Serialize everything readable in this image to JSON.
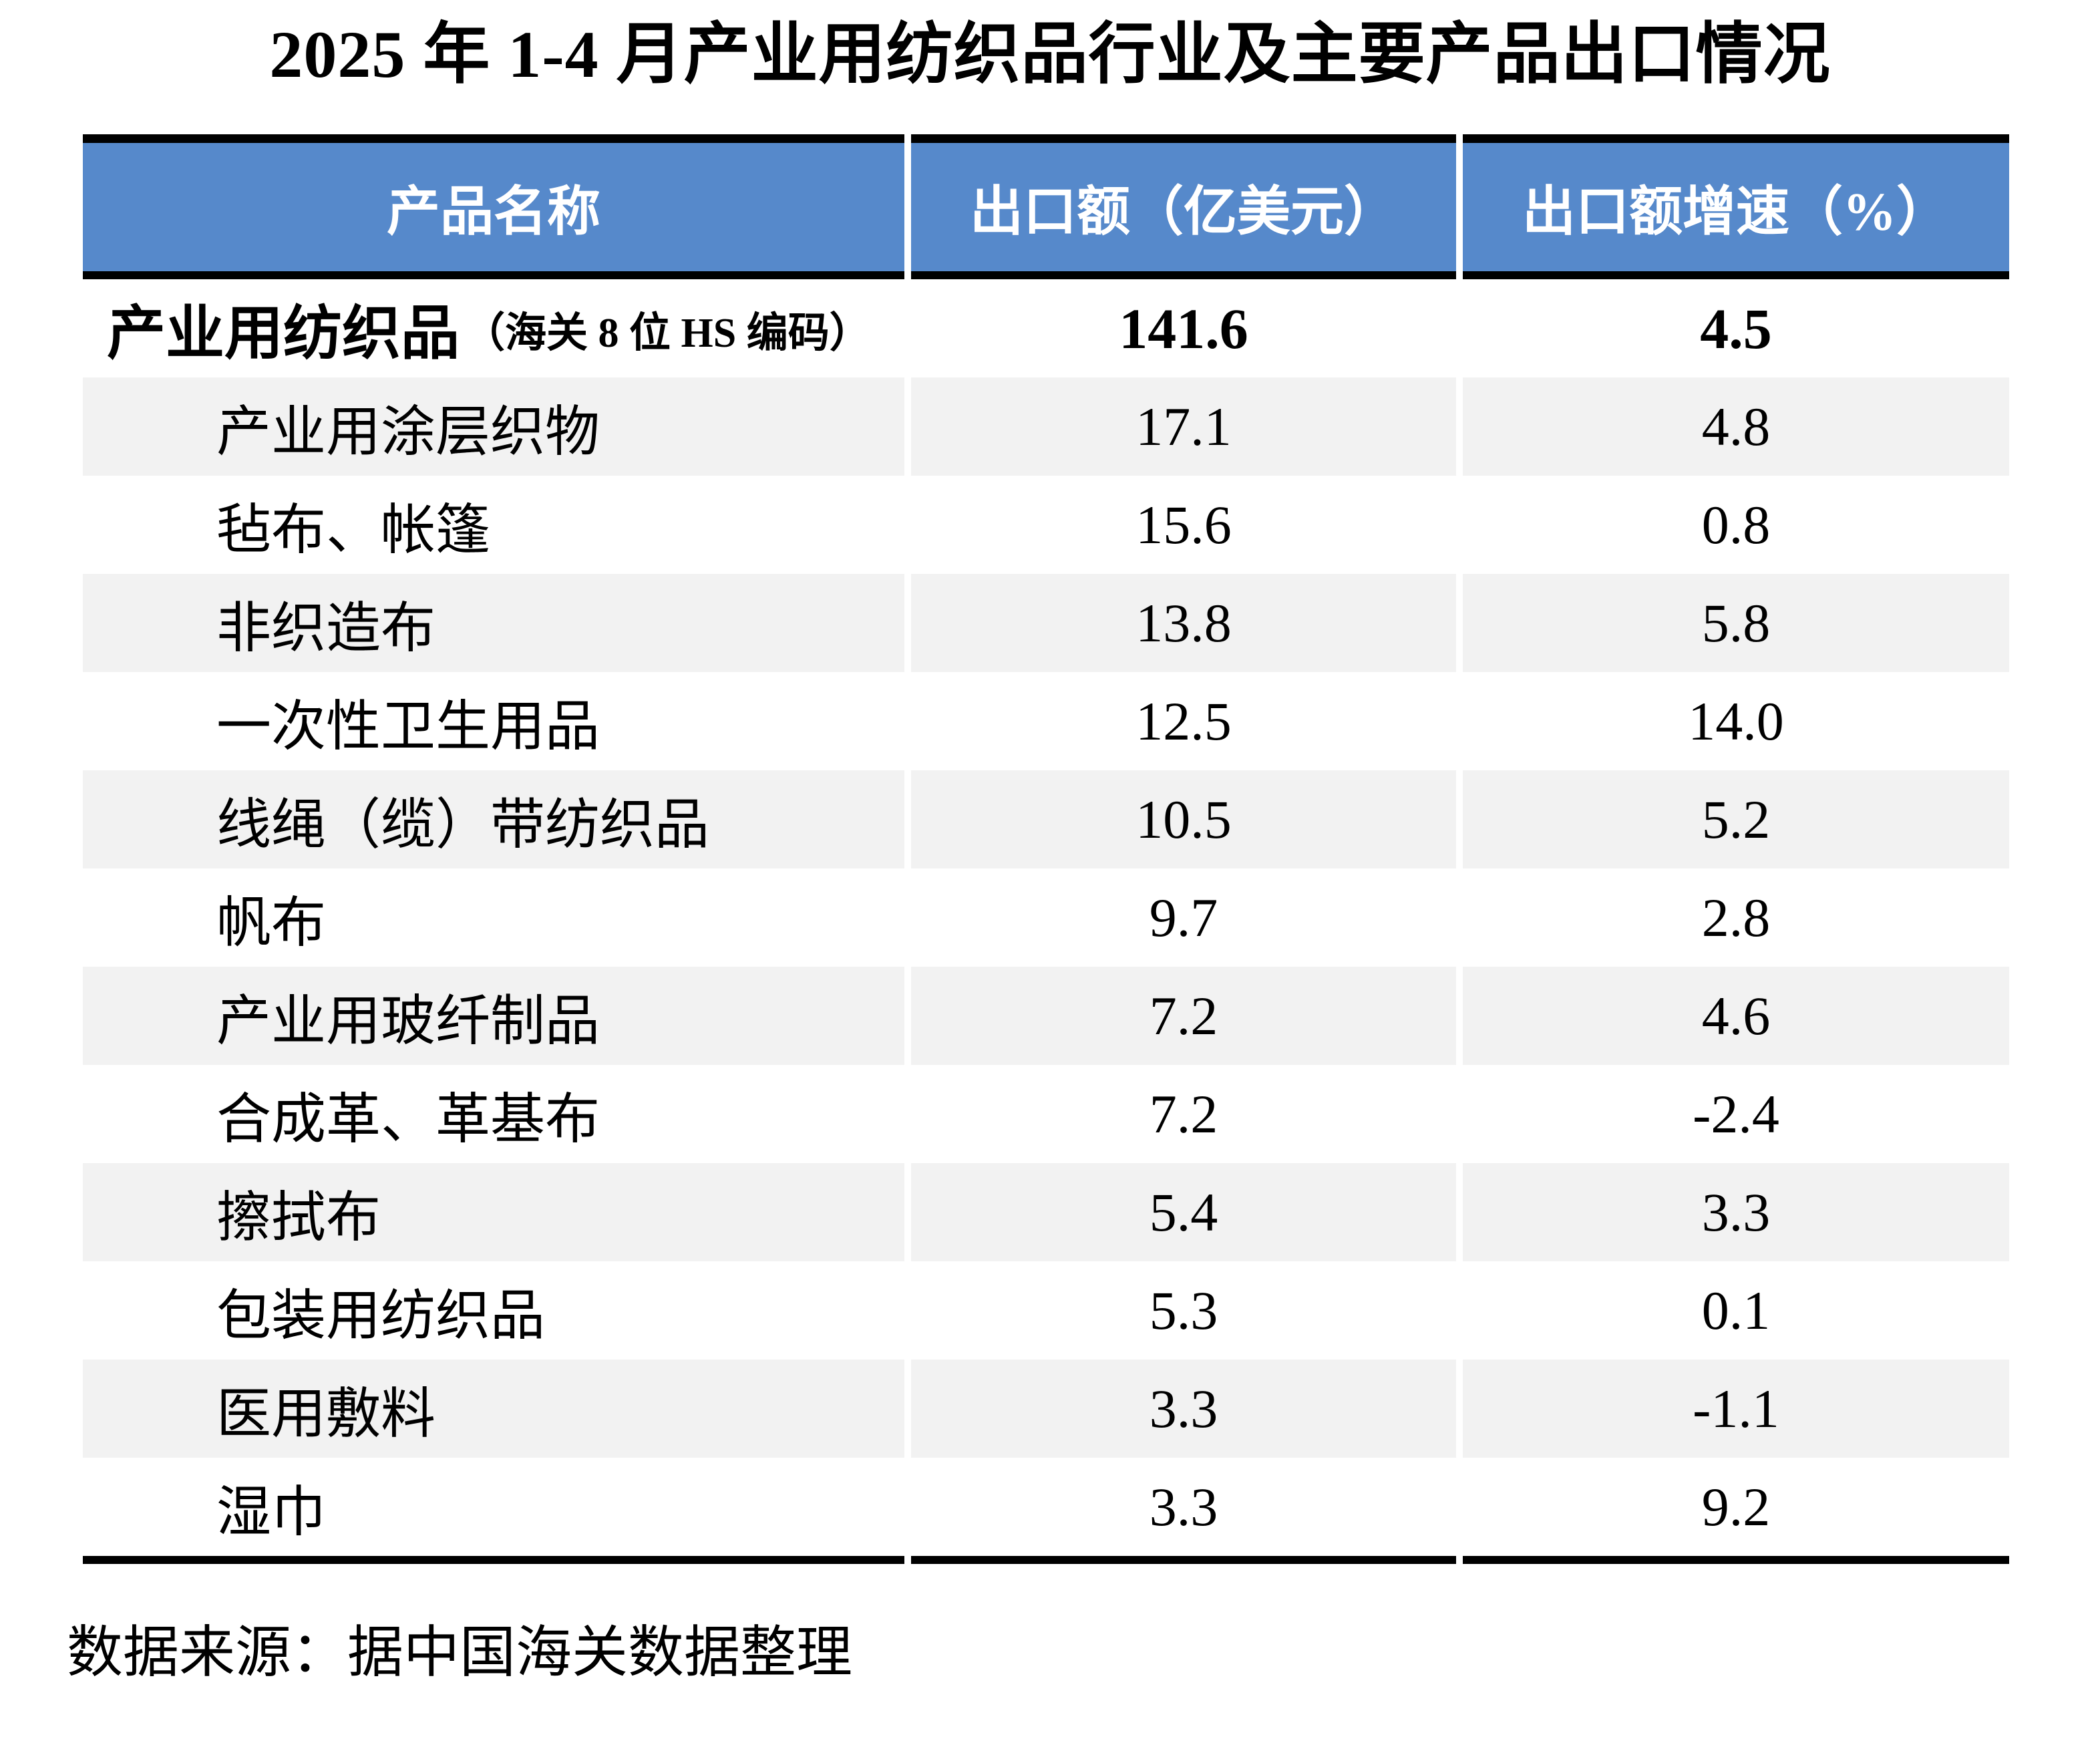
{
  "title": "2025 年 1-4 月产业用纺织品行业及主要产品出口情况",
  "source_note": "数据来源：据中国海关数据整理",
  "colors": {
    "header_bg": "#5689CB",
    "header_text": "#FFFFFF",
    "stripe_bg": "#F2F2F2",
    "rule": "#000000",
    "body_text": "#000000"
  },
  "table": {
    "columns": [
      "产品名称",
      "出口额（亿美元）",
      "出口额增速（%）"
    ],
    "rows": [
      {
        "label": "产业用纺织品",
        "label_suffix": "（海关 8 位 HS 编码）",
        "value": "141.6",
        "growth": "4.5",
        "emphasis": true
      },
      {
        "label": "产业用涂层织物",
        "value": "17.1",
        "growth": "4.8"
      },
      {
        "label": "毡布、帐篷",
        "value": "15.6",
        "growth": "0.8"
      },
      {
        "label": "非织造布",
        "value": "13.8",
        "growth": "5.8"
      },
      {
        "label": "一次性卫生用品",
        "value": "12.5",
        "growth": "14.0"
      },
      {
        "label": "线绳（缆）带纺织品",
        "value": "10.5",
        "growth": "5.2"
      },
      {
        "label": "帆布",
        "value": "9.7",
        "growth": "2.8"
      },
      {
        "label": "产业用玻纤制品",
        "value": "7.2",
        "growth": "4.6"
      },
      {
        "label": "合成革、革基布",
        "value": "7.2",
        "growth": "-2.4"
      },
      {
        "label": "擦拭布",
        "value": "5.4",
        "growth": "3.3"
      },
      {
        "label": "包装用纺织品",
        "value": "5.3",
        "growth": "0.1"
      },
      {
        "label": "医用敷料",
        "value": "3.3",
        "growth": "-1.1"
      },
      {
        "label": "湿巾",
        "value": "3.3",
        "growth": "9.2"
      }
    ]
  },
  "chart_data": {
    "type": "table",
    "title": "2025 年 1-4 月产业用纺织品行业及主要产品出口情况",
    "columns": [
      "产品名称",
      "出口额（亿美元）",
      "出口额增速（%）"
    ],
    "categories": [
      "产业用纺织品（海关8位HS编码）",
      "产业用涂层织物",
      "毡布、帐篷",
      "非织造布",
      "一次性卫生用品",
      "线绳（缆）带纺织品",
      "帆布",
      "产业用玻纤制品",
      "合成革、革基布",
      "擦拭布",
      "包装用纺织品",
      "医用敷料",
      "湿巾"
    ],
    "series": [
      {
        "name": "出口额（亿美元）",
        "values": [
          141.6,
          17.1,
          15.6,
          13.8,
          12.5,
          10.5,
          9.7,
          7.2,
          7.2,
          5.4,
          5.3,
          3.3,
          3.3
        ]
      },
      {
        "name": "出口额增速（%）",
        "values": [
          4.5,
          4.8,
          0.8,
          5.8,
          14.0,
          5.2,
          2.8,
          4.6,
          -2.4,
          3.3,
          0.1,
          -1.1,
          9.2
        ]
      }
    ],
    "source": "数据来源：据中国海关数据整理"
  }
}
